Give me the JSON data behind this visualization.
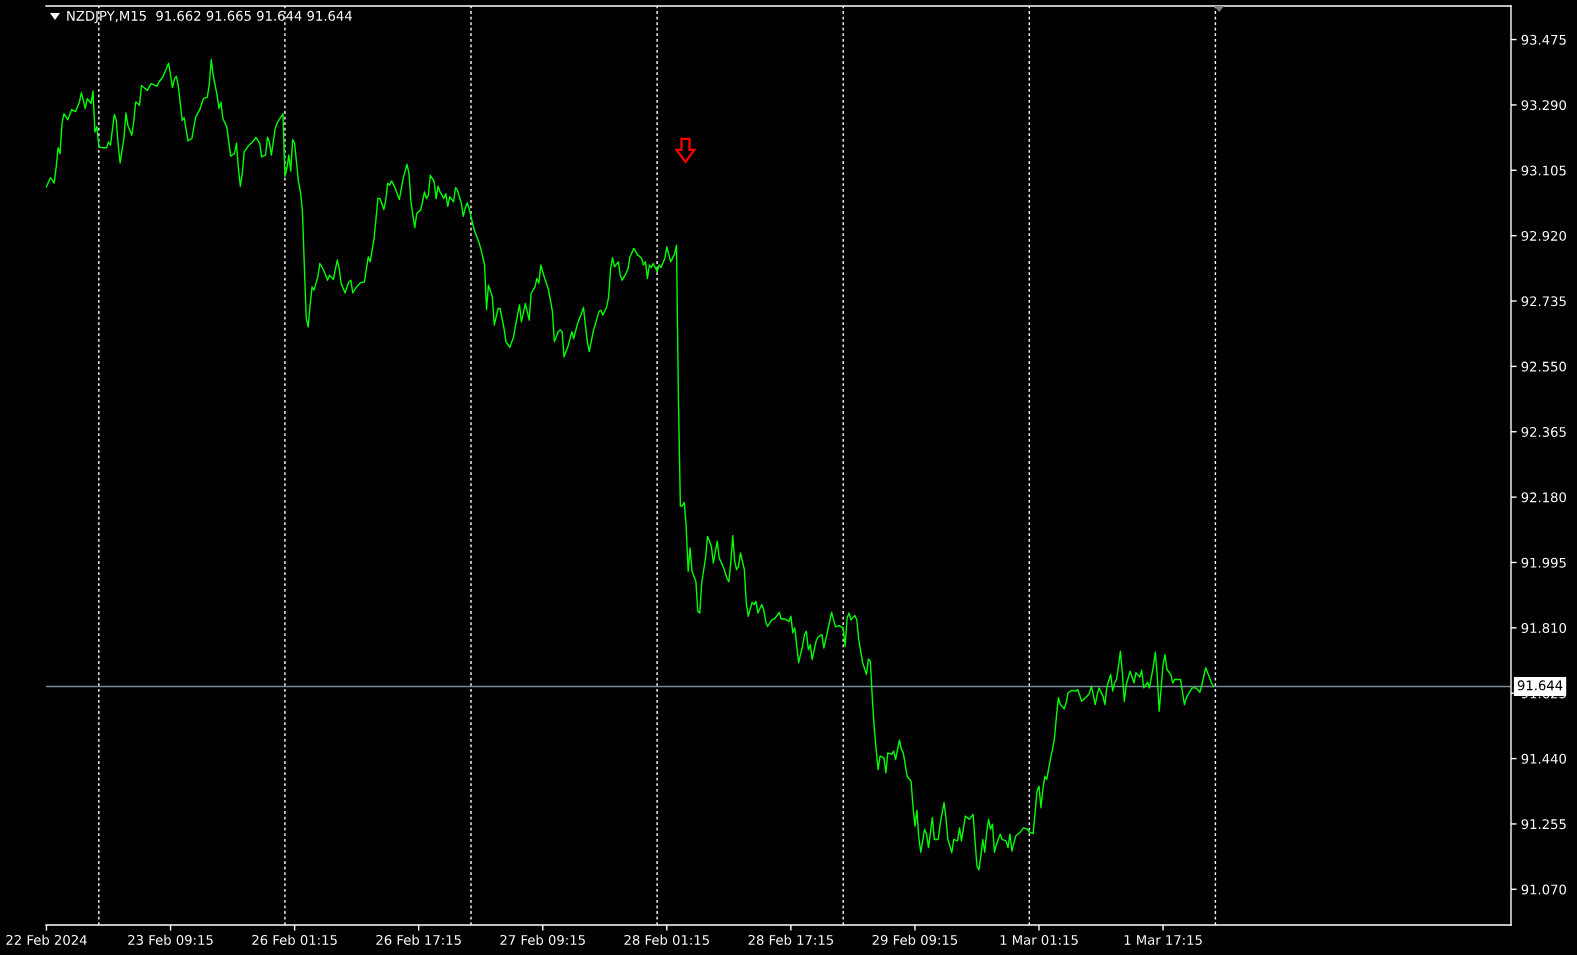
{
  "chart_data": {
    "type": "line",
    "title": "NZDJPY,M15  91.662 91.665 91.644 91.644",
    "categories": [
      "22 Feb 2024",
      null,
      null,
      null,
      null,
      null,
      null,
      null,
      null,
      null,
      null,
      null,
      null,
      null,
      null,
      null,
      null,
      null,
      null,
      null,
      null,
      null,
      null,
      null,
      null,
      null,
      null,
      null,
      null,
      null,
      null,
      null,
      null,
      null,
      null,
      null,
      null,
      null,
      null,
      null,
      null,
      null,
      null,
      null,
      null,
      null,
      null,
      null,
      null,
      null,
      null,
      null,
      null,
      null,
      null,
      null,
      null,
      null,
      null,
      null,
      null,
      null,
      null,
      null,
      "23 Feb 09:15",
      null,
      null,
      null,
      null,
      null,
      null,
      null,
      null,
      null,
      null,
      null,
      null,
      null,
      null,
      null,
      null,
      null,
      null,
      null,
      null,
      null,
      null,
      null,
      null,
      null,
      null,
      null,
      null,
      null,
      null,
      null,
      null,
      null,
      null,
      null,
      null,
      null,
      null,
      null,
      null,
      null,
      null,
      null,
      null,
      null,
      null,
      null,
      null,
      null,
      null,
      null,
      null,
      null,
      null,
      null,
      null,
      null,
      null,
      null,
      null,
      null,
      null,
      null,
      "26 Feb 01:15",
      null,
      null,
      null,
      null,
      null,
      null,
      null,
      null,
      null,
      null,
      null,
      null,
      null,
      null,
      null,
      null,
      null,
      null,
      null,
      null,
      null,
      null,
      null,
      null,
      null,
      null,
      null,
      null,
      null,
      null,
      null,
      null,
      null,
      null,
      null,
      null,
      null,
      null,
      null,
      null,
      null,
      null,
      null,
      null,
      null,
      null,
      null,
      null,
      null,
      null,
      null,
      null,
      null,
      null,
      null,
      null,
      null,
      null,
      null,
      null,
      null,
      null,
      null,
      "26 Feb 17:15",
      null,
      null,
      null,
      null,
      null,
      null,
      null,
      null,
      null,
      null,
      null,
      null,
      null,
      null,
      null,
      null,
      null,
      null,
      null,
      null,
      null,
      null,
      null,
      null,
      null,
      null,
      null,
      null,
      null,
      null,
      null,
      null,
      null,
      null,
      null,
      null,
      null,
      null,
      null,
      null,
      null,
      null,
      null,
      null,
      null,
      null,
      null,
      null,
      null,
      null,
      null,
      null,
      null,
      null,
      null,
      null,
      null,
      null,
      null,
      null,
      null,
      null,
      null,
      "27 Feb 09:15",
      null,
      null,
      null,
      null,
      null,
      null,
      null,
      null,
      null,
      null,
      null,
      null,
      null,
      null,
      null,
      null,
      null,
      null,
      null,
      null,
      null,
      null,
      null,
      null,
      null,
      null,
      null,
      null,
      null,
      null,
      null,
      null,
      null,
      null,
      null,
      null,
      null,
      null,
      null,
      null,
      null,
      null,
      null,
      null,
      null,
      null,
      null,
      null,
      null,
      null,
      null,
      null,
      null,
      null,
      null,
      null,
      null,
      null,
      null,
      null,
      null,
      null,
      null,
      "28 Feb 01:15",
      null,
      null,
      null,
      null,
      null,
      null,
      null,
      null,
      null,
      null,
      null,
      null,
      null,
      null,
      null,
      null,
      null,
      null,
      null,
      null,
      null,
      null,
      null,
      null,
      null,
      null,
      null,
      null,
      null,
      null,
      null,
      null,
      null,
      null,
      null,
      null,
      null,
      null,
      null,
      null,
      null,
      null,
      null,
      null,
      null,
      null,
      null,
      null,
      null,
      null,
      null,
      null,
      null,
      null,
      null,
      null,
      null,
      null,
      null,
      null,
      null,
      null,
      null,
      "28 Feb 17:15",
      null,
      null,
      null,
      null,
      null,
      null,
      null,
      null,
      null,
      null,
      null,
      null,
      null,
      null,
      null,
      null,
      null,
      null,
      null,
      null,
      null,
      null,
      null,
      null,
      null,
      null,
      null,
      null,
      null,
      null,
      null,
      null,
      null,
      null,
      null,
      null,
      null,
      null,
      null,
      null,
      null,
      null,
      null,
      null,
      null,
      null,
      null,
      null,
      null,
      null,
      null,
      null,
      null,
      null,
      null,
      null,
      null,
      null,
      null,
      null,
      null,
      null,
      null,
      "29 Feb 09:15",
      null,
      null,
      null,
      null,
      null,
      null,
      null,
      null,
      null,
      null,
      null,
      null,
      null,
      null,
      null,
      null,
      null,
      null,
      null,
      null,
      null,
      null,
      null,
      null,
      null,
      null,
      null,
      null,
      null,
      null,
      null,
      null,
      null,
      null,
      null,
      null,
      null,
      null,
      null,
      null,
      null,
      null,
      null,
      null,
      null,
      null,
      null,
      null,
      null,
      null,
      null,
      null,
      null,
      null,
      null,
      null,
      null,
      null,
      null,
      null,
      null,
      null,
      null,
      "1 Mar 01:15",
      null,
      null,
      null,
      null,
      null,
      null,
      null,
      null,
      null,
      null,
      null,
      null,
      null,
      null,
      null,
      null,
      null,
      null,
      null,
      null,
      null,
      null,
      null,
      null,
      null,
      null,
      null,
      null,
      null,
      null,
      null,
      null,
      null,
      null,
      null,
      null,
      null,
      null,
      null,
      null,
      null,
      null,
      null,
      null,
      null,
      null,
      null,
      null,
      null,
      null,
      null,
      null,
      null,
      null,
      null,
      null,
      null,
      null,
      null,
      null,
      null,
      null,
      null,
      "1 Mar 17:15",
      null,
      null,
      null,
      null,
      null,
      null,
      null,
      null,
      null,
      null,
      null,
      null,
      null,
      null,
      null,
      null,
      null,
      null,
      null,
      null,
      null,
      null,
      null,
      null,
      null,
      null
    ],
    "series": [
      {
        "color": "#00ff00",
        "values": [
          93.058,
          93.071,
          93.084,
          93.077,
          93.069,
          93.114,
          93.169,
          93.152,
          93.237,
          93.265,
          93.257,
          93.248,
          93.263,
          93.277,
          93.274,
          93.271,
          93.285,
          93.298,
          93.325,
          93.303,
          93.28,
          93.308,
          93.301,
          93.294,
          93.329,
          93.213,
          93.229,
          93.171,
          93.17,
          93.169,
          93.169,
          93.169,
          93.185,
          93.176,
          93.22,
          93.263,
          93.246,
          93.176,
          93.126,
          93.163,
          93.199,
          93.267,
          93.232,
          93.218,
          93.204,
          93.242,
          93.298,
          93.294,
          93.289,
          93.345,
          93.34,
          93.336,
          93.331,
          93.341,
          93.35,
          93.348,
          93.345,
          93.343,
          93.355,
          93.362,
          93.369,
          93.382,
          93.395,
          93.408,
          93.374,
          93.339,
          93.364,
          93.371,
          93.343,
          93.295,
          93.246,
          93.254,
          93.221,
          93.188,
          93.192,
          93.195,
          93.226,
          93.256,
          93.266,
          93.275,
          93.292,
          93.308,
          93.31,
          93.312,
          93.35,
          93.418,
          93.374,
          93.346,
          93.317,
          93.28,
          93.298,
          93.251,
          93.24,
          93.228,
          93.187,
          93.145,
          93.149,
          93.152,
          93.182,
          93.11,
          93.06,
          93.096,
          93.157,
          93.165,
          93.173,
          93.179,
          93.184,
          93.19,
          93.198,
          93.19,
          93.181,
          93.143,
          93.146,
          93.148,
          93.199,
          93.185,
          93.148,
          93.186,
          93.223,
          93.239,
          93.248,
          93.257,
          93.265,
          93.088,
          93.11,
          93.148,
          93.103,
          93.192,
          93.181,
          93.127,
          93.072,
          93.044,
          92.992,
          92.837,
          92.686,
          92.662,
          92.724,
          92.775,
          92.766,
          92.785,
          92.804,
          92.841,
          92.832,
          92.822,
          92.808,
          92.794,
          92.808,
          92.802,
          92.796,
          92.824,
          92.851,
          92.827,
          92.785,
          92.772,
          92.758,
          92.774,
          92.789,
          92.794,
          92.758,
          92.767,
          92.775,
          92.781,
          92.787,
          92.788,
          92.789,
          92.825,
          92.86,
          92.846,
          92.879,
          92.912,
          92.969,
          93.025,
          93.025,
          93.01,
          92.994,
          93.02,
          93.068,
          93.063,
          93.075,
          93.064,
          93.053,
          93.038,
          93.022,
          93.052,
          93.082,
          93.102,
          93.122,
          93.096,
          93.016,
          92.978,
          92.943,
          92.983,
          92.988,
          92.992,
          93.016,
          93.044,
          93.025,
          93.034,
          93.091,
          93.082,
          93.072,
          93.025,
          93.06,
          93.044,
          93.035,
          93.025,
          93.039,
          93.003,
          93.03,
          93.023,
          93.016,
          93.056,
          93.049,
          93.03,
          93.011,
          92.975,
          92.997,
          93.013,
          92.997,
          92.974,
          92.95,
          92.931,
          92.917,
          92.902,
          92.884,
          92.861,
          92.837,
          92.711,
          92.78,
          92.764,
          92.747,
          92.667,
          92.691,
          92.714,
          92.714,
          92.686,
          92.658,
          92.62,
          92.612,
          92.604,
          92.619,
          92.634,
          92.667,
          92.696,
          92.724,
          92.676,
          92.7,
          92.728,
          92.705,
          92.681,
          92.757,
          92.766,
          92.775,
          92.799,
          92.785,
          92.837,
          92.818,
          92.799,
          92.783,
          92.766,
          92.736,
          92.705,
          92.62,
          92.634,
          92.648,
          92.653,
          92.648,
          92.577,
          92.592,
          92.606,
          92.627,
          92.648,
          92.629,
          92.651,
          92.672,
          92.686,
          92.7,
          92.717,
          92.667,
          92.62,
          92.592,
          92.62,
          92.648,
          92.667,
          92.686,
          92.705,
          92.709,
          92.695,
          92.707,
          92.719,
          92.747,
          92.827,
          92.858,
          92.832,
          92.839,
          92.846,
          92.808,
          92.794,
          92.804,
          92.813,
          92.827,
          92.86,
          92.872,
          92.884,
          92.875,
          92.865,
          92.861,
          92.856,
          92.837,
          92.846,
          92.799,
          92.837,
          92.83,
          92.841,
          92.83,
          92.818,
          92.837,
          92.83,
          92.843,
          92.856,
          92.888,
          92.867,
          92.846,
          92.857,
          92.868,
          92.893,
          92.455,
          92.155,
          92.155,
          92.165,
          92.097,
          91.97,
          92.036,
          91.97,
          91.956,
          91.941,
          91.857,
          91.852,
          91.937,
          91.973,
          92.008,
          92.069,
          92.055,
          92.04,
          91.993,
          92.024,
          92.055,
          92.008,
          91.996,
          91.984,
          91.968,
          91.951,
          91.941,
          91.993,
          92.071,
          91.998,
          91.975,
          91.984,
          92.022,
          91.999,
          91.975,
          91.88,
          91.843,
          91.863,
          91.882,
          91.876,
          91.885,
          91.852,
          91.864,
          91.876,
          91.861,
          91.828,
          91.814,
          91.823,
          91.831,
          91.835,
          91.838,
          91.846,
          91.854,
          91.835,
          91.835,
          91.835,
          91.832,
          91.828,
          91.843,
          91.796,
          91.81,
          91.761,
          91.712,
          91.735,
          91.758,
          91.791,
          91.8,
          91.748,
          91.762,
          91.72,
          91.746,
          91.772,
          91.784,
          91.788,
          91.791,
          91.753,
          91.777,
          91.803,
          91.828,
          91.854,
          91.834,
          91.813,
          91.815,
          91.816,
          91.813,
          91.81,
          91.758,
          91.838,
          91.852,
          91.833,
          91.839,
          91.845,
          91.833,
          91.777,
          91.745,
          91.712,
          91.695,
          91.678,
          91.722,
          91.715,
          91.612,
          91.527,
          91.466,
          91.409,
          91.447,
          91.445,
          91.442,
          91.4,
          91.456,
          91.454,
          91.452,
          91.461,
          91.437,
          91.465,
          91.492,
          91.466,
          91.456,
          91.423,
          91.39,
          91.383,
          91.376,
          91.305,
          91.249,
          91.294,
          91.216,
          91.175,
          91.208,
          91.24,
          91.226,
          91.188,
          91.231,
          91.273,
          91.211,
          91.211,
          91.211,
          91.254,
          91.285,
          91.315,
          91.273,
          91.211,
          91.193,
          91.174,
          91.211,
          91.209,
          91.207,
          91.244,
          91.207,
          91.242,
          91.277,
          91.273,
          91.268,
          91.275,
          91.282,
          91.207,
          91.136,
          91.125,
          91.164,
          91.211,
          91.175,
          91.23,
          91.268,
          91.24,
          91.254,
          91.175,
          91.197,
          91.212,
          91.226,
          91.211,
          91.209,
          91.207,
          91.188,
          91.226,
          91.178,
          91.2,
          91.221,
          91.226,
          91.23,
          91.237,
          91.244,
          91.242,
          91.24,
          91.232,
          91.23,
          91.228,
          91.288,
          91.348,
          91.362,
          91.301,
          91.353,
          91.39,
          91.381,
          91.412,
          91.442,
          91.466,
          91.499,
          91.56,
          91.612,
          91.593,
          91.587,
          91.581,
          91.598,
          91.626,
          91.63,
          91.633,
          91.632,
          91.631,
          91.635,
          91.619,
          91.602,
          91.607,
          91.612,
          91.618,
          91.624,
          91.645,
          91.621,
          91.593,
          91.621,
          91.64,
          91.628,
          91.616,
          91.593,
          91.643,
          91.661,
          91.678,
          91.631,
          91.654,
          91.664,
          91.701,
          91.744,
          91.683,
          91.602,
          91.649,
          91.668,
          91.687,
          91.671,
          91.654,
          91.683,
          91.677,
          91.671,
          91.69,
          91.64,
          91.648,
          91.656,
          91.64,
          91.671,
          91.701,
          91.741,
          91.673,
          91.574,
          91.64,
          91.706,
          91.734,
          91.692,
          91.685,
          91.678,
          91.654,
          91.664,
          91.664,
          91.664,
          91.664,
          91.629,
          91.593,
          91.612,
          91.622,
          91.631,
          91.64,
          91.64,
          91.64,
          91.634,
          91.628,
          91.649,
          91.673,
          91.697,
          91.683,
          91.668,
          91.654,
          91.644
        ]
      }
    ],
    "ylim": [
      90.969,
      93.57
    ],
    "yticks": [
      93.475,
      {
        "value": 93.29,
        "label": "93.290"
      },
      93.105,
      {
        "value": 92.92,
        "label": "92.920"
      },
      92.735,
      {
        "value": 92.55,
        "label": "92.550"
      },
      92.365,
      {
        "value": 92.18,
        "label": "92.180"
      },
      91.995,
      {
        "value": 91.81,
        "label": "91.810"
      },
      91.625,
      {
        "value": 91.44,
        "label": "91.440"
      },
      91.255,
      {
        "value": 91.07,
        "label": "91.070"
      }
    ],
    "ref_lines": [
      {
        "axis": "y",
        "value": 91.644,
        "label": "91.644",
        "color": "#778899"
      }
    ]
  }
}
